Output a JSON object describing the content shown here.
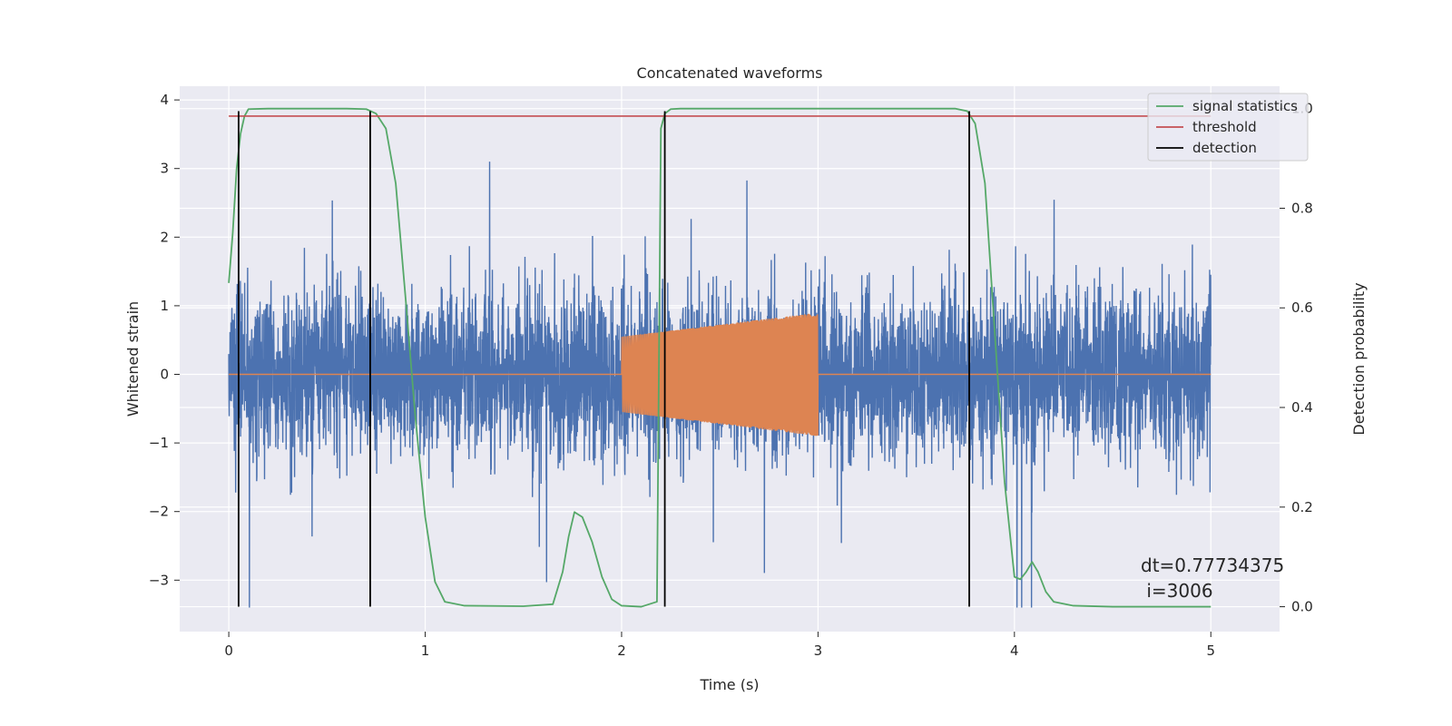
{
  "chart_data": {
    "type": "line",
    "title": "Concatenated waveforms",
    "xlabel": "Time (s)",
    "ylabel_left": "Whitened strain",
    "ylabel_right": "Detection probability",
    "xlim": [
      -0.25,
      5.35
    ],
    "ylim_left": [
      -3.75,
      4.2
    ],
    "ylim_right": [
      -0.05,
      1.045
    ],
    "x_ticks": [
      0,
      1,
      2,
      3,
      4,
      5
    ],
    "y_ticks_left": [
      -3,
      -2,
      -1,
      0,
      1,
      2,
      3,
      4
    ],
    "y_ticks_right": [
      0.0,
      0.2,
      0.4,
      0.6,
      0.8,
      1.0
    ],
    "grid": true,
    "legend_position": "top-right",
    "annotation": [
      "dt=0.77734375",
      " i=3006"
    ],
    "colors": {
      "strain": "#4c72b0",
      "injected_signal": "#dd8452",
      "signal_statistics": "#55a868",
      "threshold": "#c44e52",
      "detection": "#000000",
      "background": "#eaeaf2",
      "grid": "#ffffff"
    },
    "series": [
      {
        "name": "",
        "axis": "left",
        "kind": "noise-strain",
        "x_range": [
          0,
          5
        ],
        "envelope": [
          -3.4,
          3.1
        ]
      },
      {
        "name": "",
        "axis": "left",
        "kind": "chirp",
        "x_range": [
          2.0,
          3.0
        ],
        "amplitude_start": 0.55,
        "amplitude_end": 0.9,
        "baseline": 0
      },
      {
        "name": "signal statistics",
        "axis": "right",
        "x": [
          0,
          0.02,
          0.04,
          0.06,
          0.08,
          0.1,
          0.2,
          0.4,
          0.6,
          0.7,
          0.75,
          0.8,
          0.85,
          0.9,
          0.95,
          1.0,
          1.05,
          1.1,
          1.2,
          1.5,
          1.65,
          1.7,
          1.73,
          1.76,
          1.8,
          1.85,
          1.9,
          1.95,
          2.0,
          2.1,
          2.18,
          2.2,
          2.22,
          2.25,
          2.3,
          2.5,
          3.0,
          3.5,
          3.7,
          3.76,
          3.8,
          3.85,
          3.9,
          3.95,
          4.0,
          4.03,
          4.06,
          4.09,
          4.12,
          4.16,
          4.2,
          4.3,
          4.5,
          5.0
        ],
        "y": [
          0.65,
          0.75,
          0.88,
          0.95,
          0.985,
          0.999,
          1.0,
          1.0,
          1.0,
          0.999,
          0.99,
          0.96,
          0.85,
          0.62,
          0.38,
          0.18,
          0.05,
          0.01,
          0.002,
          0.001,
          0.005,
          0.07,
          0.14,
          0.19,
          0.18,
          0.13,
          0.06,
          0.015,
          0.002,
          0.0,
          0.01,
          0.96,
          0.99,
          0.999,
          1.0,
          1.0,
          1.0,
          1.0,
          1.0,
          0.995,
          0.97,
          0.85,
          0.55,
          0.25,
          0.06,
          0.055,
          0.07,
          0.09,
          0.07,
          0.03,
          0.01,
          0.002,
          0.0,
          0.0
        ]
      },
      {
        "name": "threshold",
        "axis": "right",
        "x": [
          0,
          5
        ],
        "y": [
          0.985,
          0.985
        ]
      },
      {
        "name": "detection",
        "axis": "right",
        "kind": "vertical-lines",
        "x": [
          0.05,
          0.72,
          2.22,
          3.77
        ],
        "y_range": [
          0.0,
          0.995
        ]
      }
    ]
  }
}
